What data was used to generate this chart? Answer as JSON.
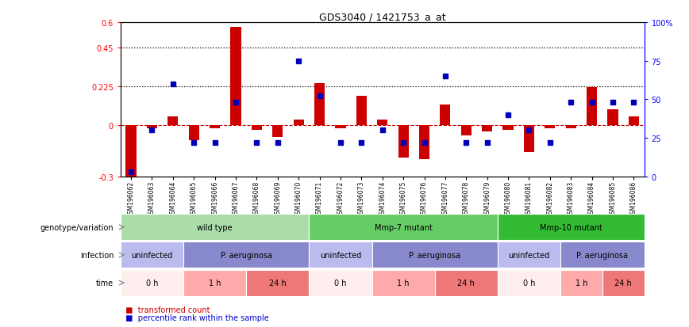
{
  "title": "GDS3040 / 1421753_a_at",
  "samples": [
    "GSM196062",
    "GSM196063",
    "GSM196064",
    "GSM196065",
    "GSM196066",
    "GSM196067",
    "GSM196068",
    "GSM196069",
    "GSM196070",
    "GSM196071",
    "GSM196072",
    "GSM196073",
    "GSM196074",
    "GSM196075",
    "GSM196076",
    "GSM196077",
    "GSM196078",
    "GSM196079",
    "GSM196080",
    "GSM196081",
    "GSM196082",
    "GSM196083",
    "GSM196084",
    "GSM196085",
    "GSM196086"
  ],
  "red_values": [
    -0.3,
    -0.02,
    0.05,
    -0.09,
    -0.02,
    0.57,
    -0.03,
    -0.07,
    0.03,
    0.245,
    -0.02,
    0.17,
    0.03,
    -0.19,
    -0.2,
    0.12,
    -0.06,
    -0.04,
    -0.03,
    -0.16,
    -0.02,
    -0.02,
    0.22,
    0.09,
    0.05
  ],
  "blue_values": [
    3,
    30,
    60,
    22,
    22,
    48,
    22,
    22,
    75,
    52,
    22,
    22,
    30,
    22,
    22,
    65,
    22,
    22,
    40,
    30,
    22,
    48,
    48,
    48,
    48
  ],
  "ylim_left": [
    -0.3,
    0.6
  ],
  "ylim_right": [
    0,
    100
  ],
  "yticks_left": [
    -0.3,
    0.0,
    0.225,
    0.45,
    0.6
  ],
  "ytick_labels_left": [
    "-0.3",
    "0",
    "0.225",
    "0.45",
    "0.6"
  ],
  "yticks_right": [
    0,
    25,
    50,
    75,
    100
  ],
  "ytick_labels_right": [
    "0",
    "25",
    "50",
    "75",
    "100%"
  ],
  "hlines": [
    0.225,
    0.45
  ],
  "genotype_groups": [
    {
      "label": "wild type",
      "start": 0,
      "end": 9,
      "color": "#aaddaa"
    },
    {
      "label": "Mmp-7 mutant",
      "start": 9,
      "end": 18,
      "color": "#66cc66"
    },
    {
      "label": "Mmp-10 mutant",
      "start": 18,
      "end": 25,
      "color": "#33bb33"
    }
  ],
  "infection_groups": [
    {
      "label": "uninfected",
      "start": 0,
      "end": 3,
      "color": "#bbbbee"
    },
    {
      "label": "P. aeruginosa",
      "start": 3,
      "end": 9,
      "color": "#8888cc"
    },
    {
      "label": "uninfected",
      "start": 9,
      "end": 12,
      "color": "#bbbbee"
    },
    {
      "label": "P. aeruginosa",
      "start": 12,
      "end": 18,
      "color": "#8888cc"
    },
    {
      "label": "uninfected",
      "start": 18,
      "end": 21,
      "color": "#bbbbee"
    },
    {
      "label": "P. aeruginosa",
      "start": 21,
      "end": 25,
      "color": "#8888cc"
    }
  ],
  "time_groups": [
    {
      "label": "0 h",
      "start": 0,
      "end": 3,
      "color": "#ffeeee"
    },
    {
      "label": "1 h",
      "start": 3,
      "end": 6,
      "color": "#ffaaaa"
    },
    {
      "label": "24 h",
      "start": 6,
      "end": 9,
      "color": "#ee7777"
    },
    {
      "label": "0 h",
      "start": 9,
      "end": 12,
      "color": "#ffeeee"
    },
    {
      "label": "1 h",
      "start": 12,
      "end": 15,
      "color": "#ffaaaa"
    },
    {
      "label": "24 h",
      "start": 15,
      "end": 18,
      "color": "#ee7777"
    },
    {
      "label": "0 h",
      "start": 18,
      "end": 21,
      "color": "#ffeeee"
    },
    {
      "label": "1 h",
      "start": 21,
      "end": 23,
      "color": "#ffaaaa"
    },
    {
      "label": "24 h",
      "start": 23,
      "end": 25,
      "color": "#ee7777"
    }
  ],
  "row_labels": [
    "genotype/variation",
    "infection",
    "time"
  ],
  "legend_items": [
    {
      "color": "#cc0000",
      "label": "transformed count"
    },
    {
      "color": "#0000cc",
      "label": "percentile rank within the sample"
    }
  ],
  "bar_color": "#cc0000",
  "dot_color": "#0000bb",
  "zero_line_color": "#cc0000",
  "hline_color": "#000000",
  "arrow_color": "#888888"
}
